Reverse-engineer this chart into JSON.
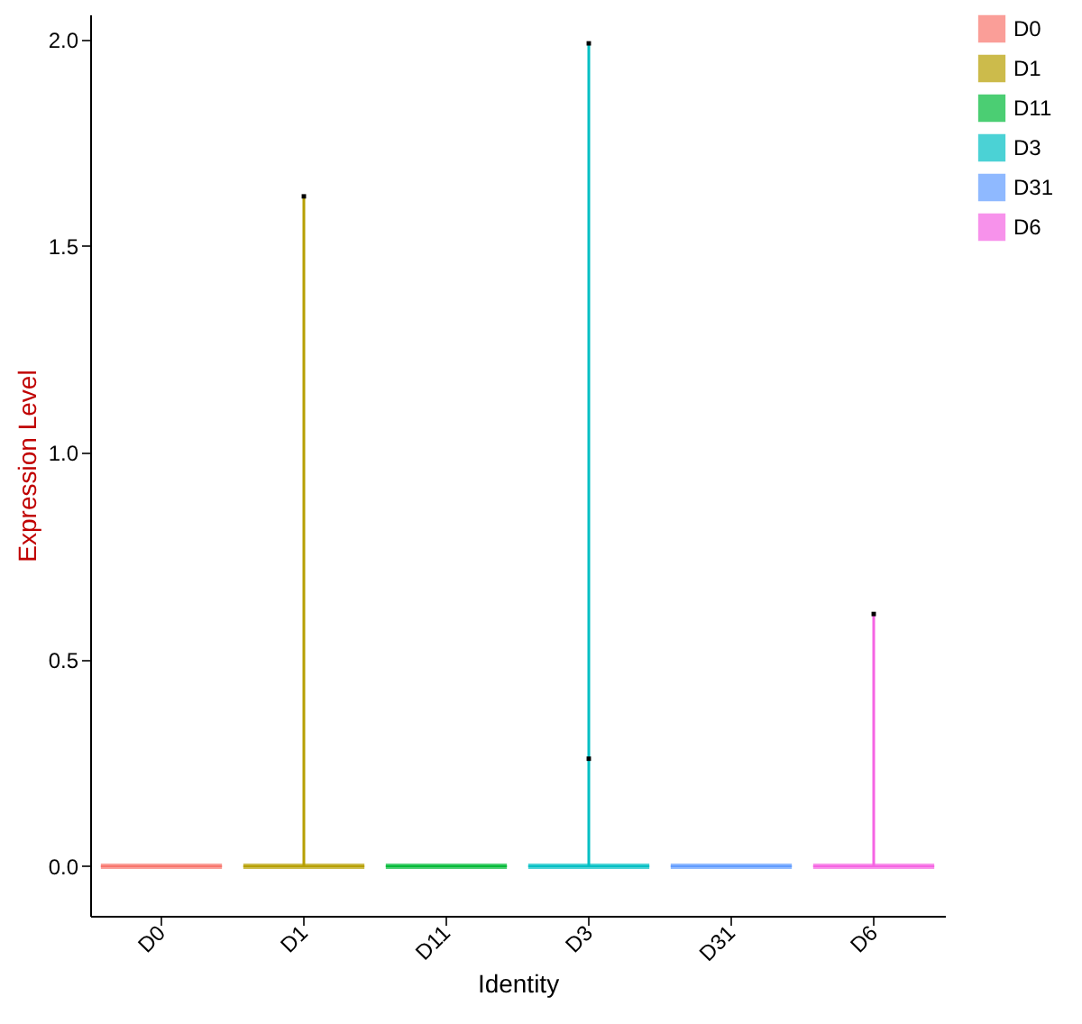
{
  "chart_data": {
    "type": "box",
    "xlabel": "Identity",
    "ylabel": "Expression Level",
    "categories": [
      "D0",
      "D1",
      "D11",
      "D3",
      "D31",
      "D6"
    ],
    "series": [
      {
        "name": "D0",
        "color": "#f8766d",
        "boxes": [
          {
            "low": 0,
            "q1": 0,
            "median": 0,
            "q3": 0,
            "high": 0
          },
          null,
          null,
          null,
          null,
          null
        ]
      },
      {
        "name": "D1",
        "color": "#b79f00",
        "boxes": [
          null,
          {
            "low": 0,
            "q1": 0,
            "median": 0,
            "q3": 0,
            "high": 1.62
          },
          null,
          null,
          null,
          null
        ]
      },
      {
        "name": "D11",
        "color": "#00ba38",
        "boxes": [
          null,
          null,
          {
            "low": 0,
            "q1": 0,
            "median": 0,
            "q3": 0,
            "high": 0
          },
          null,
          null,
          null
        ]
      },
      {
        "name": "D3",
        "color": "#00bfc4",
        "boxes": [
          null,
          null,
          null,
          {
            "low": 0,
            "q1": 0,
            "median": 0,
            "q3": 0,
            "high": 1.99
          },
          null,
          null
        ]
      },
      {
        "name": "D31",
        "color": "#619cff",
        "boxes": [
          null,
          null,
          null,
          null,
          {
            "low": 0,
            "q1": 0,
            "median": 0,
            "q3": 0,
            "high": 0
          },
          null
        ]
      },
      {
        "name": "D6",
        "color": "#f564e3",
        "boxes": [
          null,
          null,
          null,
          null,
          null,
          {
            "low": 0,
            "q1": 0,
            "median": 0,
            "q3": 0,
            "high": 0.61
          }
        ]
      },
      {
        "type": "scatter",
        "color": "#000000",
        "x": [
          "D1",
          "D3",
          "D3",
          "D6"
        ],
        "values": [
          1.62,
          1.99,
          0.26,
          0.61
        ]
      }
    ],
    "ylim": [
      -0.12,
      2.06
    ],
    "yticks": [
      {
        "value": 0,
        "label": "0.0"
      },
      {
        "value": 0.5,
        "label": "0.5"
      },
      {
        "value": 1,
        "label": "1.0"
      },
      {
        "value": 1.5,
        "label": "1.5"
      },
      {
        "value": 2,
        "label": "2.0"
      }
    ],
    "grid": false,
    "legend": "right",
    "marker": "square"
  }
}
